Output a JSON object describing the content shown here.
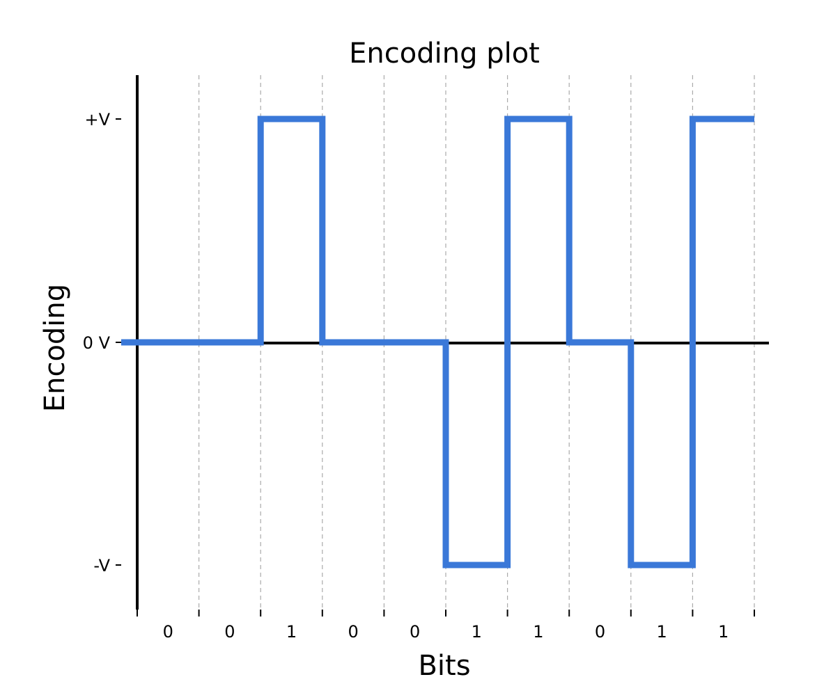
{
  "chart_data": {
    "type": "line",
    "title": "Encoding plot",
    "xlabel": "Bits",
    "ylabel": "Encoding",
    "bits": [
      "0",
      "0",
      "1",
      "0",
      "0",
      "1",
      "1",
      "0",
      "1",
      "1"
    ],
    "levels": [
      0,
      0,
      1,
      0,
      0,
      -1,
      1,
      0,
      -1,
      1
    ],
    "y_ticks": [
      {
        "value": 1,
        "label": "+V"
      },
      {
        "value": 0,
        "label": "0 V"
      },
      {
        "value": -1,
        "label": "-V"
      }
    ],
    "xlim": [
      0,
      10
    ],
    "ylim": [
      -1.2,
      1.2
    ],
    "grid": "vertical dashed at bit boundaries",
    "line_style": "step",
    "line_color": "#3a78d8"
  }
}
